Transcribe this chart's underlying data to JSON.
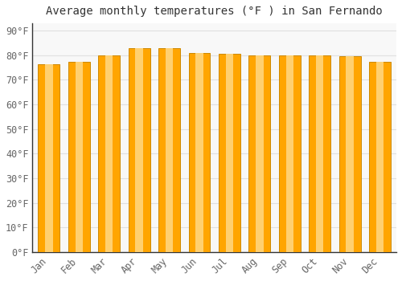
{
  "title": "Average monthly temperatures (°F ) in San Fernando",
  "months": [
    "Jan",
    "Feb",
    "Mar",
    "Apr",
    "May",
    "Jun",
    "Jul",
    "Aug",
    "Sep",
    "Oct",
    "Nov",
    "Dec"
  ],
  "values": [
    76.5,
    77.5,
    80,
    83,
    83,
    81,
    80.5,
    80,
    80,
    80,
    79.5,
    77.5
  ],
  "bar_color_main": "#FFA500",
  "bar_color_light": "#FFD070",
  "bar_edge_color": "#CC8800",
  "background_color": "#FFFFFF",
  "plot_bg_color": "#F8F8F8",
  "grid_color": "#E0E0E0",
  "yticks": [
    0,
    10,
    20,
    30,
    40,
    50,
    60,
    70,
    80,
    90
  ],
  "ylim": [
    0,
    93
  ],
  "title_fontsize": 10,
  "tick_fontsize": 8.5,
  "tick_color": "#666666",
  "font_family": "monospace"
}
